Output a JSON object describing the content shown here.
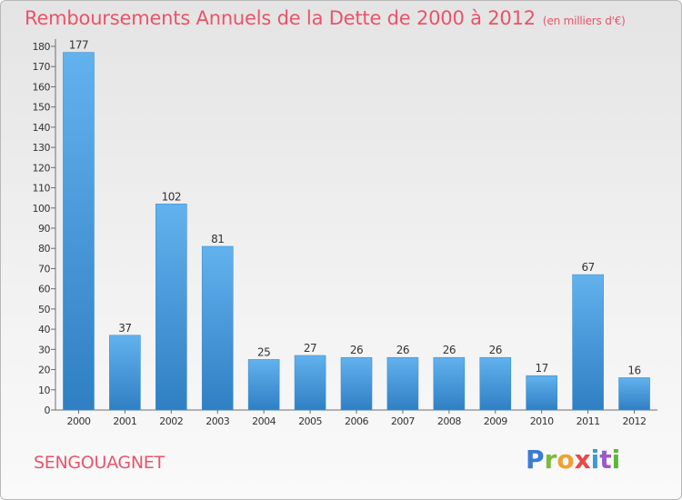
{
  "title": "Remboursements Annuels de la Dette de 2000 à 2012",
  "subtitle": "(en milliers d'€)",
  "commune": "SENGOUAGNET",
  "brand": "Proxiti",
  "colors": {
    "title": "#e8546a",
    "bar_light": "#62b2ee",
    "bar_dark": "#2f7fc4"
  },
  "chart_data": {
    "type": "bar",
    "title": "Remboursements Annuels de la Dette de 2000 à 2012",
    "subtitle": "(en milliers d'€)",
    "xlabel": "",
    "ylabel": "",
    "categories": [
      "2000",
      "2001",
      "2002",
      "2003",
      "2004",
      "2005",
      "2006",
      "2007",
      "2008",
      "2009",
      "2010",
      "2011",
      "2012"
    ],
    "values": [
      177,
      37,
      102,
      81,
      25,
      27,
      26,
      26,
      26,
      26,
      17,
      67,
      16
    ],
    "ylim": [
      0,
      180
    ],
    "yticks": [
      0,
      10,
      20,
      30,
      40,
      50,
      60,
      70,
      80,
      90,
      100,
      110,
      120,
      130,
      140,
      150,
      160,
      170,
      180
    ],
    "grid": false,
    "legend": "none"
  }
}
